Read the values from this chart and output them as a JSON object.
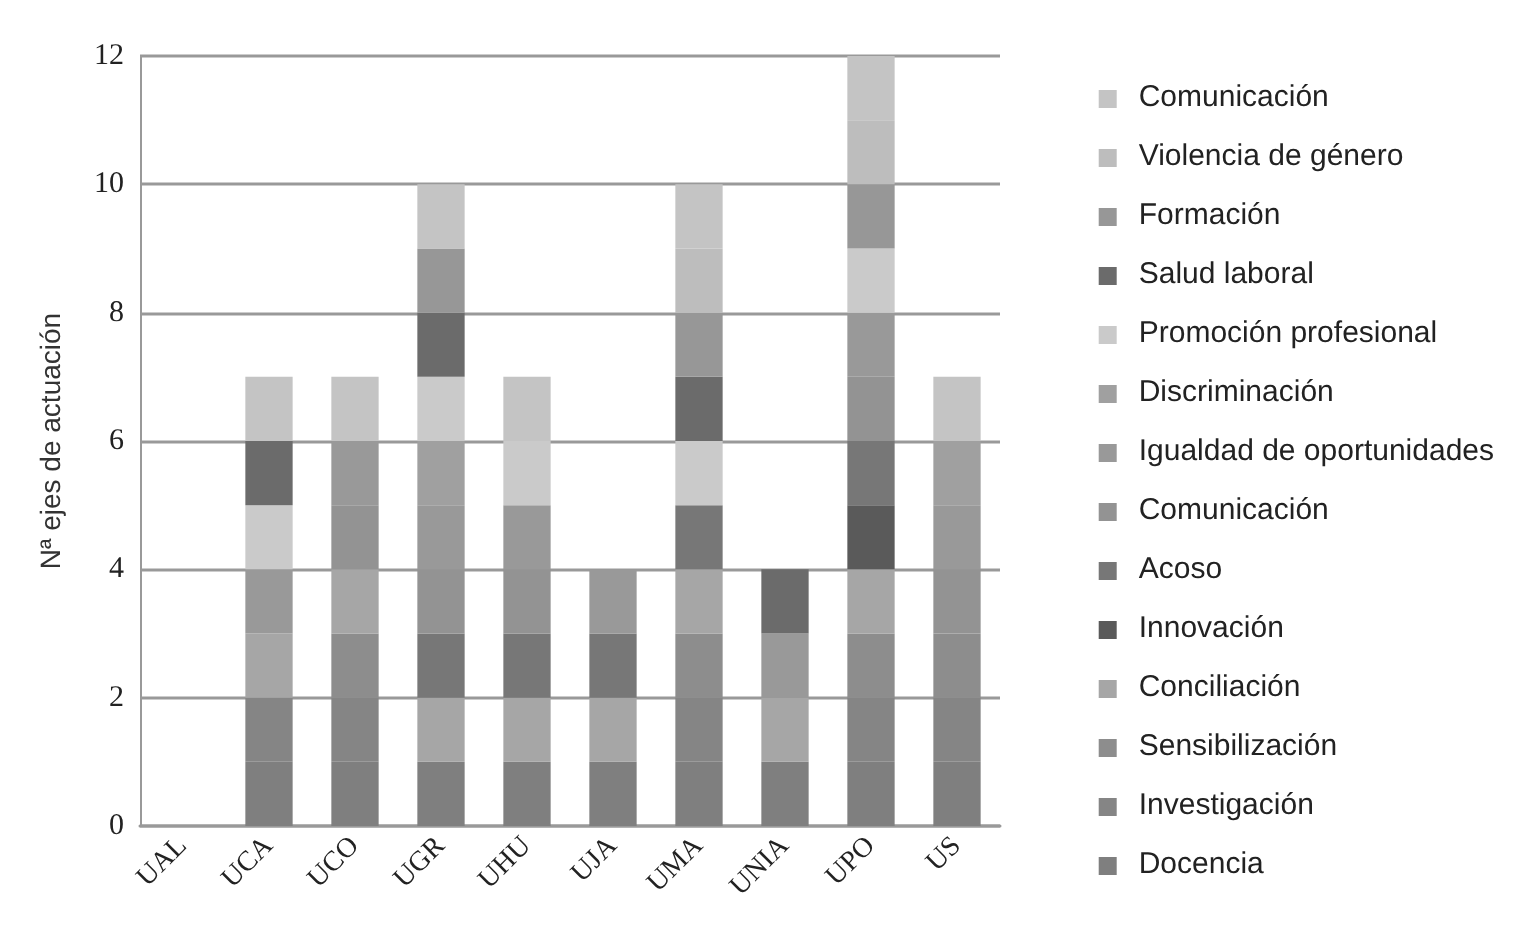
{
  "chart_data": {
    "type": "bar",
    "stacked": true,
    "ylabel": "Nª ejes de actuación",
    "categories": [
      "UAL",
      "UCA",
      "UCO",
      "UGR",
      "UHU",
      "UJA",
      "UMA",
      "UNIA",
      "UPO",
      "US"
    ],
    "ylim": [
      0,
      12
    ],
    "yticks": [
      0,
      2,
      4,
      6,
      8,
      10,
      12
    ],
    "grid": "y",
    "legend": "right",
    "series": [
      {
        "name": "Docencia",
        "color": "#7f7f7f",
        "values": [
          0,
          1,
          1,
          1,
          1,
          1,
          1,
          1,
          1,
          1
        ]
      },
      {
        "name": "Investigación",
        "color": "#858585",
        "values": [
          0,
          1,
          1,
          0,
          0,
          0,
          1,
          0,
          1,
          1
        ]
      },
      {
        "name": "Sensibilización",
        "color": "#8d8d8d",
        "values": [
          0,
          0,
          1,
          0,
          0,
          0,
          1,
          0,
          1,
          1
        ]
      },
      {
        "name": "Conciliación",
        "color": "#a6a6a6",
        "values": [
          0,
          1,
          1,
          1,
          1,
          1,
          1,
          1,
          1,
          0
        ]
      },
      {
        "name": "Innovación",
        "color": "#5a5a5a",
        "values": [
          0,
          0,
          0,
          0,
          0,
          0,
          0,
          0,
          1,
          0
        ]
      },
      {
        "name": "Acoso",
        "color": "#777777",
        "values": [
          0,
          0,
          0,
          1,
          1,
          1,
          1,
          0,
          1,
          0
        ]
      },
      {
        "name": "Comunicación",
        "color": "#939393",
        "values": [
          0,
          0,
          1,
          1,
          1,
          0,
          0,
          0,
          1,
          1
        ]
      },
      {
        "name": "Igualdad de oportunidades",
        "color": "#999999",
        "values": [
          0,
          1,
          1,
          1,
          1,
          1,
          0,
          1,
          1,
          1
        ]
      },
      {
        "name": "Discriminación",
        "color": "#a0a0a0",
        "values": [
          0,
          0,
          0,
          1,
          0,
          0,
          0,
          0,
          0,
          1
        ]
      },
      {
        "name": "Promoción profesional",
        "color": "#cacaca",
        "values": [
          0,
          1,
          0,
          1,
          1,
          0,
          1,
          0,
          1,
          0
        ]
      },
      {
        "name": "Salud laboral",
        "color": "#6b6b6b",
        "values": [
          0,
          1,
          0,
          1,
          0,
          0,
          1,
          1,
          0,
          0
        ]
      },
      {
        "name": "Formación",
        "color": "#979797",
        "values": [
          0,
          0,
          0,
          1,
          0,
          0,
          1,
          0,
          1,
          0
        ]
      },
      {
        "name": "Violencia de género",
        "color": "#bdbdbd",
        "values": [
          0,
          0,
          0,
          0,
          0,
          0,
          1,
          0,
          1,
          0
        ]
      },
      {
        "name": "Comunicación",
        "color": "#c4c4c4",
        "values": [
          0,
          1,
          1,
          1,
          1,
          0,
          1,
          0,
          1,
          1
        ]
      }
    ]
  }
}
